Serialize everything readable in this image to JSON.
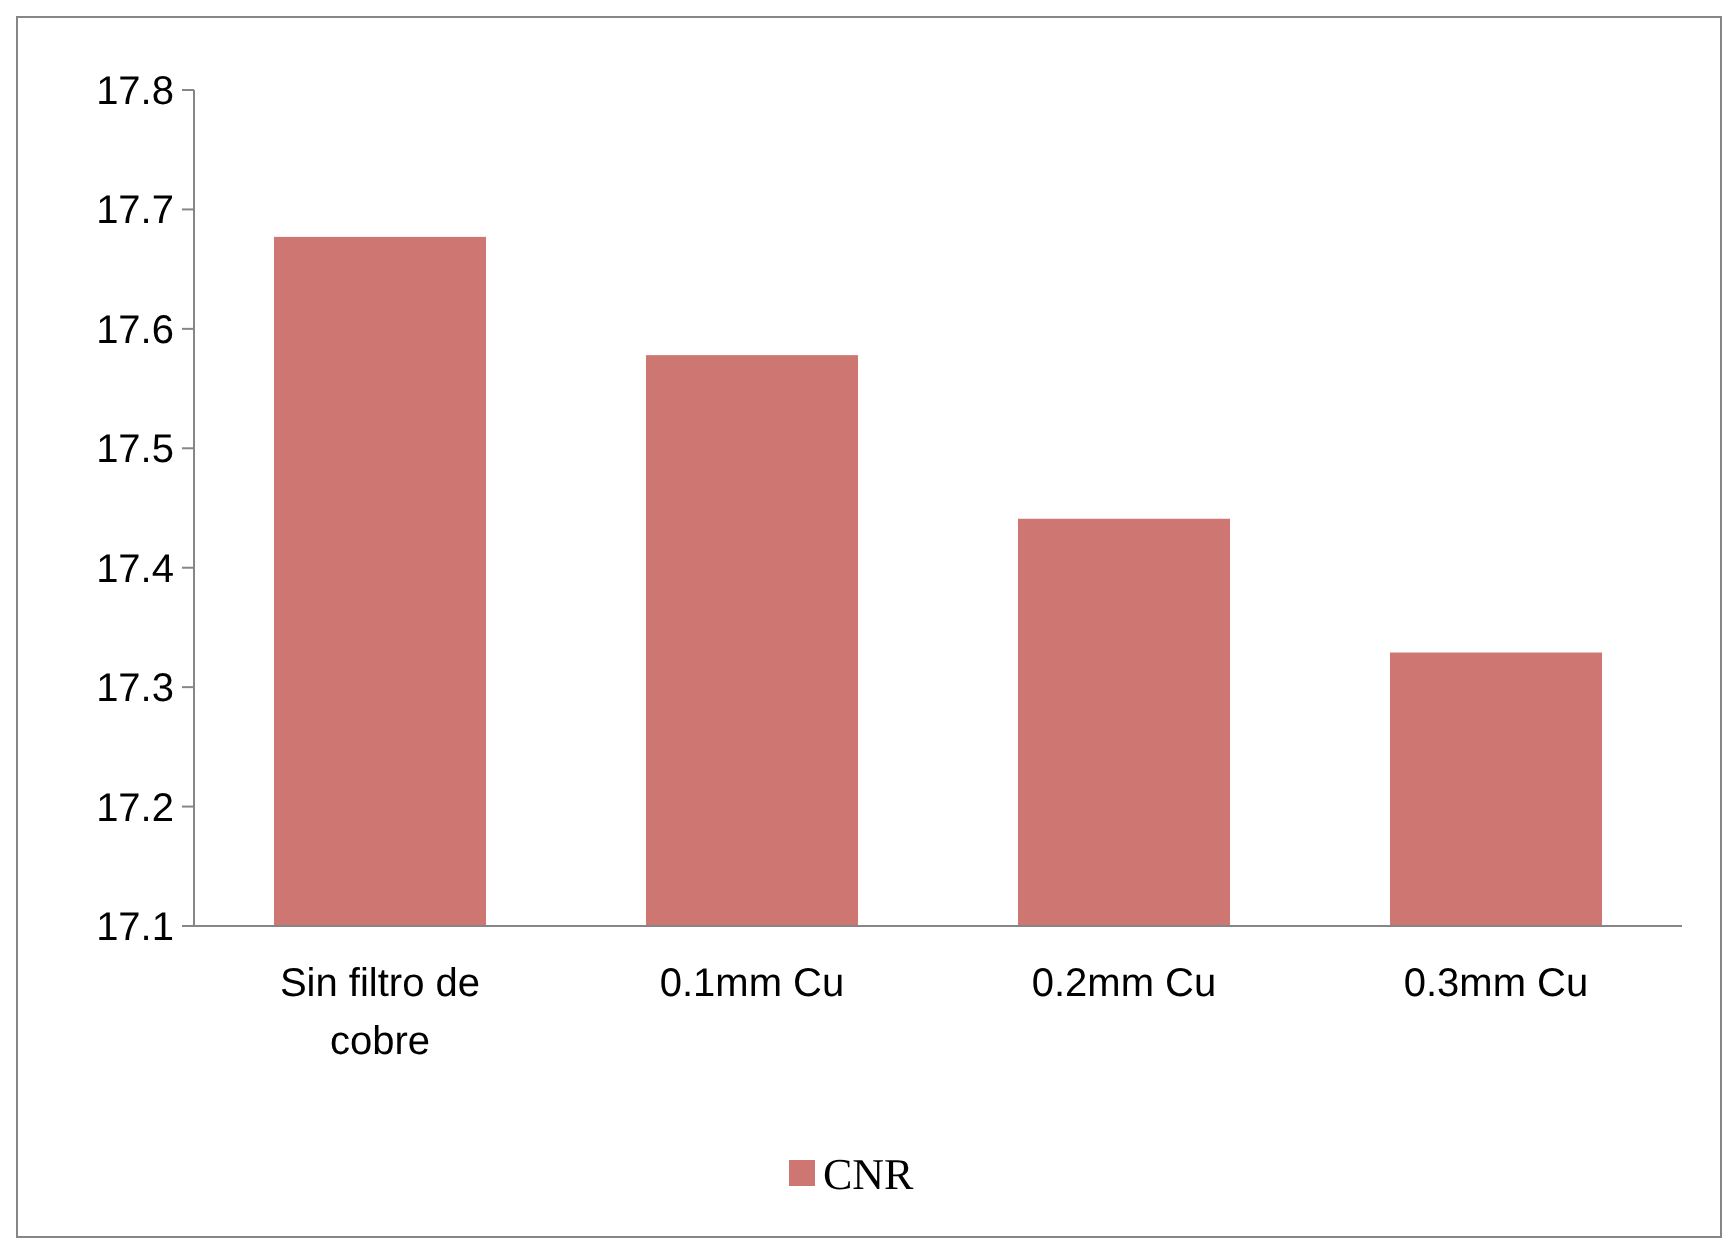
{
  "chart_data": {
    "type": "bar",
    "categories": [
      "Sin filtro de cobre",
      "0.1mm Cu",
      "0.2mm Cu",
      "0.3mm Cu"
    ],
    "series": [
      {
        "name": "CNR",
        "color": "#cd7672",
        "values": [
          17.677,
          17.578,
          17.441,
          17.329
        ]
      }
    ],
    "ylim": [
      17.1,
      17.8
    ],
    "yticks": [
      17.1,
      17.2,
      17.3,
      17.4,
      17.5,
      17.6,
      17.7,
      17.8
    ],
    "grid": false,
    "legend": "bottom"
  }
}
